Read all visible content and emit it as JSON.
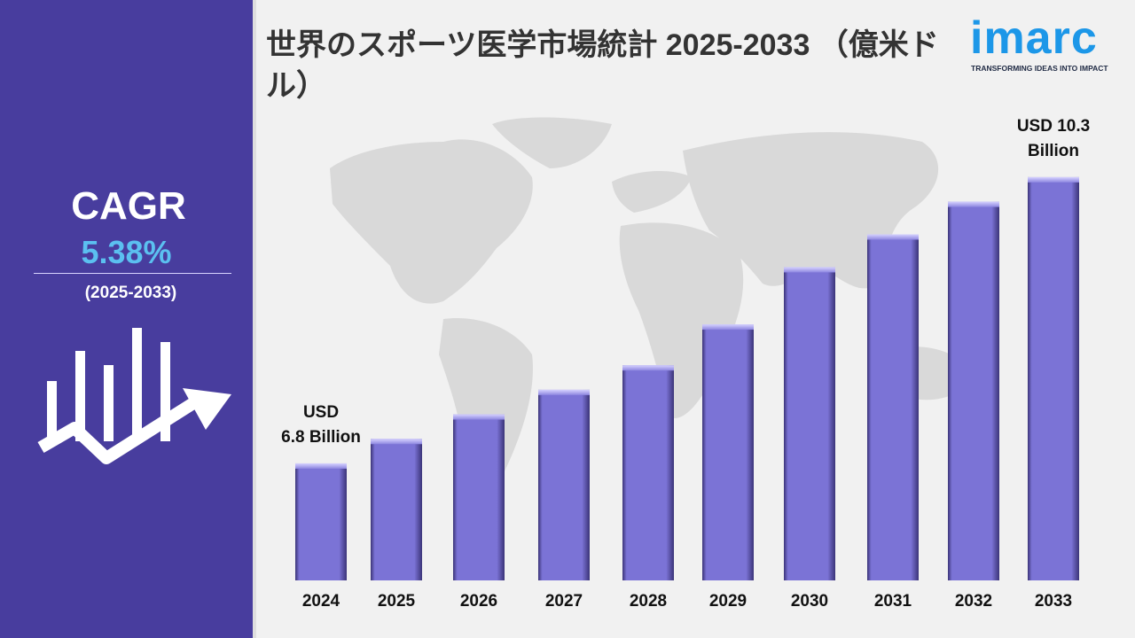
{
  "sidebar": {
    "cagr_label": "CAGR",
    "cagr_value": "5.38%",
    "cagr_period": "(2025-2033)",
    "icon": "growth-chart-arrow-icon"
  },
  "header": {
    "title": "世界のスポーツ医学市場統計 2025-2033 （億米ドル）"
  },
  "logo": {
    "wordmark": "imarc",
    "tagline": "TRANSFORMING IDEAS INTO IMPACT"
  },
  "colors": {
    "sidebar_bg": "#483d9e",
    "bar_fill": "#7b73d6",
    "cagr_value": "#5bc0f0",
    "logo_blue": "#1c97e8"
  },
  "chart_data": {
    "type": "bar",
    "title": "世界のスポーツ医学市場統計 2025-2033 （億米ドル）",
    "categories": [
      "2024",
      "2025",
      "2026",
      "2027",
      "2028",
      "2029",
      "2030",
      "2031",
      "2032",
      "2033"
    ],
    "values": [
      6.8,
      7.1,
      7.4,
      7.7,
      8.0,
      8.5,
      9.2,
      9.6,
      10.0,
      10.3
    ],
    "annotations": [
      {
        "category": "2024",
        "lines": [
          "USD",
          "6.8 Billion"
        ]
      },
      {
        "category": "2033",
        "lines": [
          "USD 10.3",
          "Billion"
        ]
      }
    ],
    "xlabel": "",
    "ylabel": "",
    "grid": false,
    "background_decoration": "world-map"
  }
}
